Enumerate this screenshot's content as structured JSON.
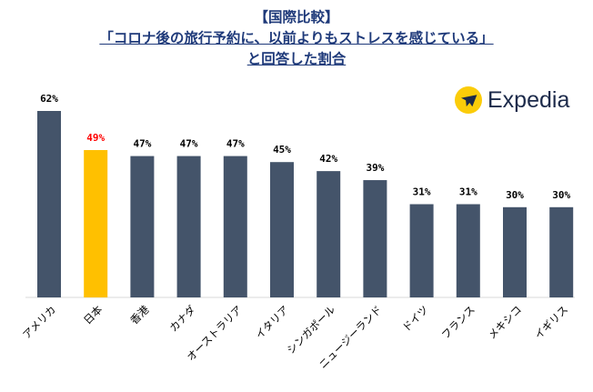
{
  "title": {
    "line1": "【国際比較】",
    "line2": "「コロナ後の旅行予約に、以前よりもストレスを感じている」",
    "line3": "と回答した割合"
  },
  "logo": {
    "text": "Expedia",
    "icon": "airplane-icon"
  },
  "colors": {
    "bar": "#44546a",
    "highlight_bar": "#ffc000",
    "highlight_label": "#ff0000",
    "label": "#000000"
  },
  "chart_data": {
    "type": "bar",
    "categories": [
      "アメリカ",
      "日本",
      "香港",
      "カナダ",
      "オーストラリア",
      "イタリア",
      "シンガポール",
      "ニュージーランド",
      "ドイツ",
      "フランス",
      "メキシコ",
      "イギリス"
    ],
    "values": [
      62,
      49,
      47,
      47,
      47,
      45,
      42,
      39,
      31,
      31,
      30,
      30
    ],
    "value_labels": [
      "62%",
      "49%",
      "47%",
      "47%",
      "47%",
      "45%",
      "42%",
      "39%",
      "31%",
      "31%",
      "30%",
      "30%"
    ],
    "highlight_index": 1,
    "ylim": [
      0,
      62
    ],
    "grid": false
  }
}
